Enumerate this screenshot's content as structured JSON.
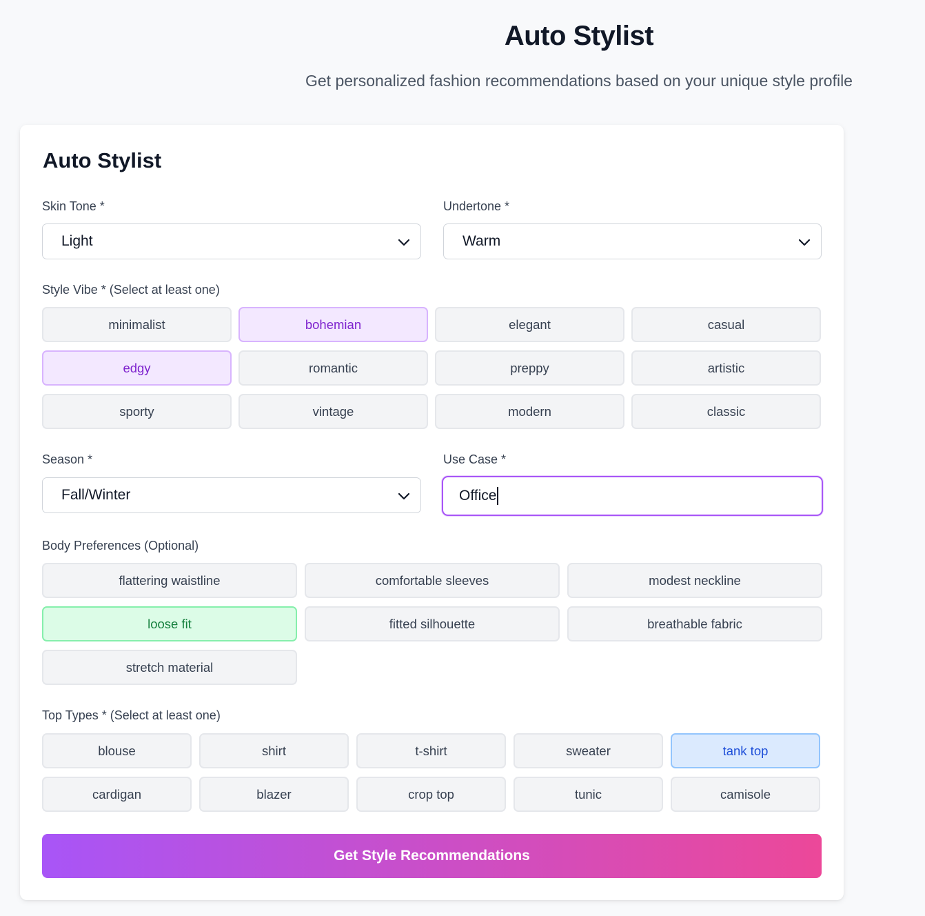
{
  "header": {
    "title": "Auto Stylist",
    "subtitle": "Get personalized fashion recommendations based on your unique style profile"
  },
  "form": {
    "title": "Auto Stylist",
    "skin_tone": {
      "label": "Skin Tone *",
      "value": "Light"
    },
    "undertone": {
      "label": "Undertone *",
      "value": "Warm"
    },
    "style_vibe": {
      "label": "Style Vibe * (Select at least one)",
      "options": [
        "minimalist",
        "bohemian",
        "elegant",
        "casual",
        "edgy",
        "romantic",
        "preppy",
        "artistic",
        "sporty",
        "vintage",
        "modern",
        "classic"
      ],
      "selected": [
        "bohemian",
        "edgy"
      ]
    },
    "season": {
      "label": "Season *",
      "value": "Fall/Winter"
    },
    "use_case": {
      "label": "Use Case *",
      "value": "Office"
    },
    "body_preferences": {
      "label": "Body Preferences (Optional)",
      "options": [
        "flattering waistline",
        "comfortable sleeves",
        "modest neckline",
        "loose fit",
        "fitted silhouette",
        "breathable fabric",
        "stretch material"
      ],
      "selected": [
        "loose fit"
      ]
    },
    "top_types": {
      "label": "Top Types * (Select at least one)",
      "options": [
        "blouse",
        "shirt",
        "t-shirt",
        "sweater",
        "tank top",
        "cardigan",
        "blazer",
        "crop top",
        "tunic",
        "camisole"
      ],
      "selected": [
        "tank top"
      ]
    },
    "submit_label": "Get Style Recommendations"
  },
  "colors": {
    "accent_purple": "#a855f7",
    "accent_pink": "#ec4899",
    "selected_green": "#dcfce7",
    "selected_blue": "#dbeafe"
  }
}
